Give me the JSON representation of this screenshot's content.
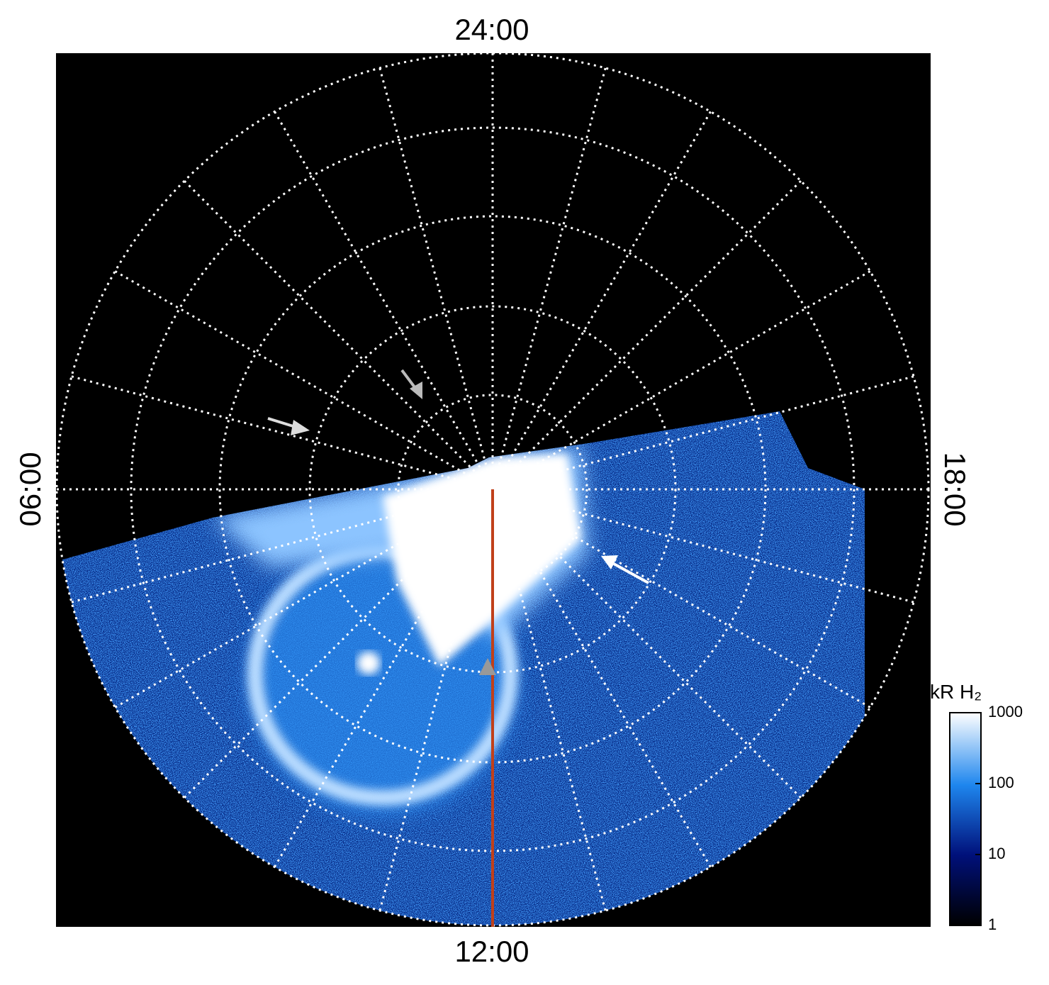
{
  "labels": {
    "top": "24:00",
    "bottom": "12:00",
    "left": "06:00",
    "right": "18:00"
  },
  "colorbar": {
    "title": "kR H₂",
    "lim": [
      1,
      1000
    ],
    "ticks": [
      1,
      10,
      100,
      1000
    ],
    "log": true
  }
}
